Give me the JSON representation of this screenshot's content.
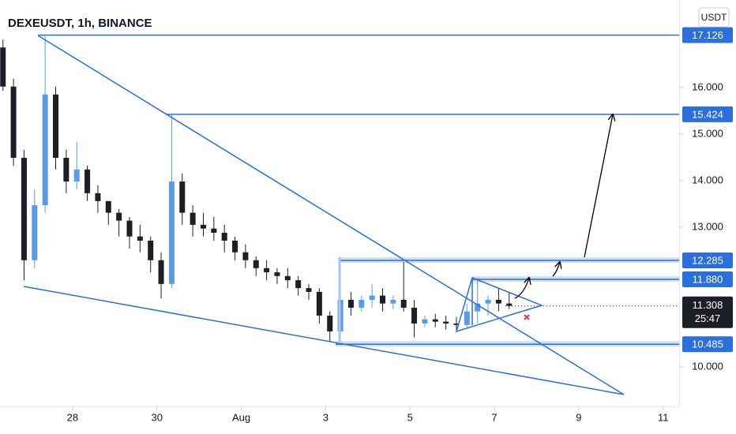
{
  "chart_data": {
    "type": "candlestick",
    "title": "DEXEUSDT, 1h, BINANCE",
    "currency": "USDT",
    "up_color": "#5a9be6",
    "down_color": "#1c1f26",
    "level_color": "#2a6fdb",
    "xlim": [
      26.28,
      42.38
    ],
    "ylim": [
      9.15,
      17.88
    ],
    "xticks": [
      28,
      30,
      {
        "value": 32,
        "label": "Aug"
      },
      {
        "value": 34,
        "label": "3"
      },
      {
        "value": 36,
        "label": "5"
      },
      {
        "value": 38,
        "label": "7"
      },
      {
        "value": 40,
        "label": "9"
      },
      {
        "value": 42,
        "label": "11"
      }
    ],
    "yticks": [
      {
        "value": 10,
        "label": "10.000"
      },
      {
        "value": 13,
        "label": "13.000"
      },
      {
        "value": 14,
        "label": "14.000"
      },
      {
        "value": 15,
        "label": "15.000"
      },
      {
        "value": 16,
        "label": "16.000"
      }
    ],
    "x": [
      26.35,
      26.6,
      26.85,
      27.1,
      27.35,
      27.6,
      27.85,
      28.1,
      28.35,
      28.6,
      28.85,
      29.1,
      29.35,
      29.6,
      29.85,
      30.1,
      30.35,
      30.6,
      30.85,
      31.1,
      31.35,
      31.6,
      31.85,
      32.1,
      32.35,
      32.6,
      32.85,
      33.1,
      33.35,
      33.6,
      33.85,
      34.1,
      34.35,
      34.6,
      34.85,
      35.1,
      35.35,
      35.6,
      35.85,
      36.1,
      36.35,
      36.6,
      36.85,
      37.1,
      37.35,
      37.6,
      37.85,
      38.1,
      38.35
    ],
    "open": [
      16.86,
      16.02,
      14.49,
      12.29,
      13.47,
      15.85,
      14.49,
      13.98,
      14.24,
      13.73,
      13.56,
      13.31,
      13.14,
      12.8,
      12.71,
      12.29,
      11.78,
      13.98,
      13.31,
      13.05,
      12.97,
      12.88,
      12.71,
      12.46,
      12.29,
      12.12,
      12.03,
      11.95,
      11.86,
      11.69,
      11.61,
      11.1,
      10.76,
      11.44,
      11.27,
      11.44,
      11.53,
      11.36,
      11.44,
      11.27,
      10.93,
      11.02,
      10.97,
      10.93,
      10.9,
      11.19,
      11.36,
      11.44,
      11.36
    ],
    "high": [
      17.03,
      16.19,
      14.66,
      13.81,
      17.12,
      16.02,
      14.66,
      14.83,
      14.32,
      13.9,
      13.56,
      13.39,
      13.22,
      13.05,
      12.8,
      12.46,
      15.42,
      14.15,
      13.47,
      13.31,
      13.22,
      13.05,
      12.8,
      12.63,
      12.37,
      12.29,
      12.12,
      12.12,
      11.95,
      11.78,
      11.69,
      11.19,
      12.29,
      11.61,
      11.53,
      11.78,
      11.69,
      11.53,
      12.25,
      11.44,
      11.1,
      11.14,
      11.1,
      11.07,
      11.36,
      11.92,
      11.53,
      11.69,
      11.61
    ],
    "low": [
      15.93,
      14.32,
      11.86,
      12.12,
      13.31,
      14.24,
      13.73,
      13.81,
      13.56,
      13.31,
      13.05,
      12.8,
      12.54,
      12.46,
      12.03,
      11.47,
      11.69,
      13.05,
      12.8,
      12.8,
      12.71,
      12.46,
      12.29,
      12.12,
      11.95,
      11.86,
      11.78,
      11.69,
      11.53,
      11.44,
      10.93,
      10.53,
      10.59,
      11.1,
      11.19,
      11.27,
      11.19,
      11.24,
      11.19,
      10.63,
      10.85,
      10.85,
      10.8,
      10.76,
      10.85,
      10.93,
      11.1,
      11.19,
      11.24
    ],
    "close": [
      16.02,
      14.49,
      12.29,
      13.47,
      15.85,
      14.49,
      13.98,
      14.24,
      13.73,
      13.56,
      13.31,
      13.14,
      12.8,
      12.71,
      12.29,
      11.78,
      13.98,
      13.31,
      13.05,
      12.97,
      12.88,
      12.71,
      12.46,
      12.29,
      12.12,
      12.03,
      11.95,
      11.86,
      11.69,
      11.61,
      11.1,
      10.76,
      11.44,
      11.27,
      11.44,
      11.53,
      11.36,
      11.44,
      11.27,
      10.93,
      11.02,
      10.97,
      10.93,
      10.9,
      11.19,
      11.36,
      11.44,
      11.36,
      11.31
    ],
    "price_levels": [
      17.126,
      15.424,
      12.285,
      {
        "value": 11.88,
        "label": "11.880"
      },
      10.485
    ],
    "last_price": 11.308,
    "countdown": "25:47"
  }
}
